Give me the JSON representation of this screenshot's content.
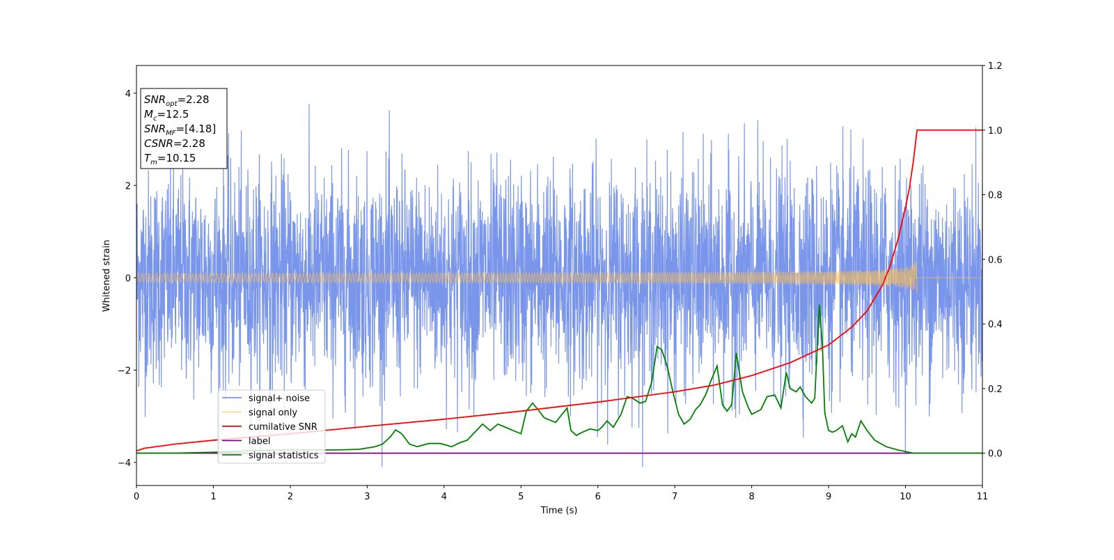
{
  "chart_data": {
    "type": "line",
    "xlabel": "Time (s)",
    "ylabel": "Whitened strain",
    "xlim": [
      0,
      11
    ],
    "ylim": [
      -4.5,
      4.6
    ],
    "y2lim": [
      -0.1,
      1.2
    ],
    "x_ticks": [
      "0",
      "1",
      "2",
      "3",
      "4",
      "5",
      "6",
      "7",
      "8",
      "9",
      "10",
      "11"
    ],
    "y_ticks": [
      "−4",
      "−2",
      "0",
      "2",
      "4"
    ],
    "y2_ticks": [
      "0.0",
      "0.2",
      "0.4",
      "0.6",
      "0.8",
      "1.0",
      "1.2"
    ],
    "y_tick_values": [
      -4,
      -2,
      0,
      2,
      4
    ],
    "y2_tick_values": [
      0.0,
      0.2,
      0.4,
      0.6,
      0.8,
      1.0,
      1.2
    ],
    "grid": false,
    "legend_position": "lower-left",
    "info_box": {
      "lines": [
        {
          "base": "SNR",
          "sub": "opt",
          "value": "=2.28"
        },
        {
          "base": "M",
          "sub": "c",
          "value": "=12.5"
        },
        {
          "base": "SNR",
          "sub": "MF",
          "value": "=[4.18]"
        },
        {
          "base": "CSNR",
          "sub": "",
          "value": "=2.28"
        },
        {
          "base": "T",
          "sub": "m",
          "value": "=10.15"
        }
      ]
    },
    "series": [
      {
        "name": "signal+ noise",
        "axis": "left",
        "color": "#4169e1",
        "opacity": 0.7,
        "description_range": [
          -4.1,
          4.2
        ],
        "envelope_typical": 2.4
      },
      {
        "name": "signal only",
        "axis": "left",
        "color": "#ffc04d",
        "opacity": 0.6,
        "merger_time": 10.15,
        "peak_amplitude": 0.35
      },
      {
        "name": "cumilative SNR",
        "axis": "right",
        "color": "#ff0000",
        "x": [
          0,
          0.1,
          0.5,
          1,
          2,
          3,
          4,
          5,
          6,
          7,
          7.5,
          8,
          8.5,
          9,
          9.3,
          9.5,
          9.7,
          9.8,
          9.9,
          10.0,
          10.05,
          10.1,
          10.15,
          10.16,
          11
        ],
        "values": [
          0.007,
          0.015,
          0.028,
          0.04,
          0.06,
          0.083,
          0.105,
          0.13,
          0.158,
          0.19,
          0.21,
          0.24,
          0.28,
          0.335,
          0.39,
          0.44,
          0.52,
          0.58,
          0.66,
          0.76,
          0.82,
          0.9,
          1.0,
          1.0,
          1.0
        ]
      },
      {
        "name": "label",
        "axis": "right",
        "color": "#800080",
        "x": [
          0,
          11
        ],
        "values": [
          0,
          0
        ]
      },
      {
        "name": "signal statistics",
        "axis": "right",
        "color": "#008000",
        "x": [
          0,
          0.5,
          1.0,
          1.5,
          2.0,
          2.3,
          2.6,
          2.9,
          3.1,
          3.2,
          3.3,
          3.37,
          3.45,
          3.55,
          3.65,
          3.8,
          3.95,
          4.1,
          4.2,
          4.3,
          4.4,
          4.5,
          4.6,
          4.7,
          4.8,
          4.9,
          5.0,
          5.07,
          5.15,
          5.22,
          5.3,
          5.45,
          5.5,
          5.6,
          5.65,
          5.72,
          5.8,
          5.9,
          6.0,
          6.05,
          6.12,
          6.2,
          6.3,
          6.38,
          6.45,
          6.55,
          6.62,
          6.7,
          6.77,
          6.83,
          6.9,
          6.98,
          7.05,
          7.12,
          7.2,
          7.27,
          7.33,
          7.4,
          7.48,
          7.55,
          7.62,
          7.68,
          7.74,
          7.8,
          7.88,
          7.95,
          8.0,
          8.08,
          8.12,
          8.2,
          8.3,
          8.38,
          8.45,
          8.5,
          8.58,
          8.63,
          8.7,
          8.78,
          8.82,
          8.88,
          8.92,
          8.95,
          9.0,
          9.05,
          9.1,
          9.18,
          9.25,
          9.3,
          9.35,
          9.42,
          9.5,
          9.6,
          9.75,
          9.9,
          10.1,
          10.5,
          11.0
        ],
        "values": [
          0.0,
          0.0,
          0.003,
          0.008,
          0.01,
          0.01,
          0.01,
          0.012,
          0.02,
          0.028,
          0.05,
          0.072,
          0.06,
          0.028,
          0.02,
          0.03,
          0.03,
          0.02,
          0.032,
          0.04,
          0.065,
          0.09,
          0.07,
          0.09,
          0.08,
          0.07,
          0.06,
          0.13,
          0.155,
          0.135,
          0.11,
          0.095,
          0.11,
          0.14,
          0.07,
          0.055,
          0.065,
          0.075,
          0.07,
          0.08,
          0.1,
          0.08,
          0.12,
          0.175,
          0.17,
          0.155,
          0.16,
          0.22,
          0.33,
          0.32,
          0.27,
          0.185,
          0.12,
          0.09,
          0.105,
          0.135,
          0.15,
          0.18,
          0.23,
          0.27,
          0.15,
          0.13,
          0.15,
          0.31,
          0.19,
          0.145,
          0.12,
          0.13,
          0.135,
          0.175,
          0.18,
          0.14,
          0.25,
          0.2,
          0.19,
          0.205,
          0.175,
          0.155,
          0.17,
          0.46,
          0.33,
          0.125,
          0.07,
          0.065,
          0.07,
          0.085,
          0.035,
          0.06,
          0.05,
          0.1,
          0.07,
          0.04,
          0.02,
          0.01,
          0.0,
          0.0,
          0.0
        ]
      }
    ]
  }
}
